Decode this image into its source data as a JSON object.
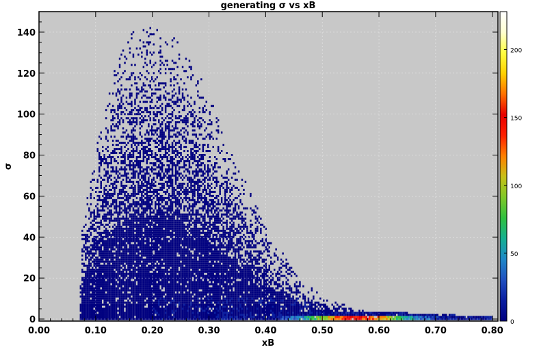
{
  "chart_data": {
    "type": "heatmap",
    "title": "generating σ vs xB",
    "xlabel": "xB",
    "ylabel": "σ",
    "xlim": [
      0.0,
      0.81
    ],
    "ylim": [
      -1,
      150
    ],
    "x_ticks": [
      "0.00",
      "0.10",
      "0.20",
      "0.30",
      "0.40",
      "0.50",
      "0.60",
      "0.70",
      "0.80"
    ],
    "y_ticks": [
      "0",
      "20",
      "40",
      "60",
      "80",
      "100",
      "120",
      "140"
    ],
    "colorbar": {
      "range": [
        0,
        228
      ],
      "ticks": [
        "0",
        "50",
        "100",
        "150",
        "200"
      ],
      "colors": [
        "#000080",
        "#0a1ea0",
        "#2050c0",
        "#1f88c8",
        "#15b090",
        "#30c040",
        "#7fc828",
        "#c8c018",
        "#ff8000",
        "#ff2000",
        "#e80000",
        "#ff7000",
        "#ffd000",
        "#ffff40",
        "#ffffd0",
        "#ffffff"
      ]
    },
    "grid": true,
    "background": "#c8c8c8",
    "density": {
      "description_free_envelope": [
        [
          0.07,
          0
        ],
        [
          0.075,
          48
        ],
        [
          0.085,
          62
        ],
        [
          0.1,
          85
        ],
        [
          0.13,
          120
        ],
        [
          0.16,
          140
        ],
        [
          0.2,
          142
        ],
        [
          0.24,
          138
        ],
        [
          0.28,
          120
        ],
        [
          0.32,
          95
        ],
        [
          0.35,
          75
        ],
        [
          0.4,
          45
        ],
        [
          0.45,
          22
        ],
        [
          0.5,
          10
        ],
        [
          0.55,
          6
        ],
        [
          0.6,
          3
        ],
        [
          0.7,
          2
        ],
        [
          0.8,
          0.5
        ]
      ],
      "peak_ridge": [
        [
          0.45,
          0.5
        ],
        [
          0.55,
          0.5
        ],
        [
          0.65,
          0.5
        ],
        [
          0.75,
          0.5
        ]
      ]
    }
  }
}
